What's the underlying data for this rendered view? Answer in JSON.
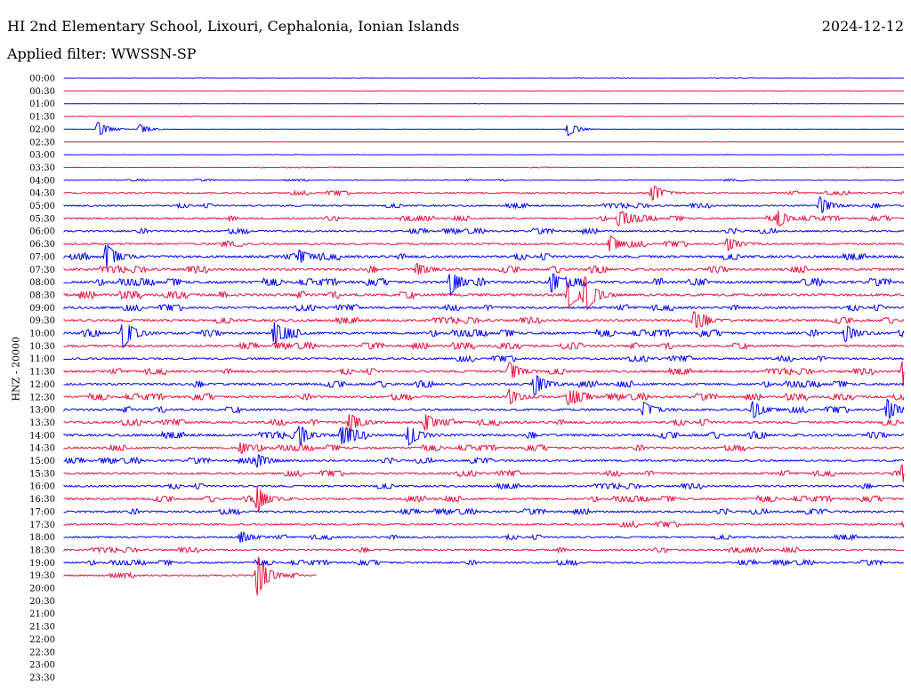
{
  "header": {
    "title": "HI 2nd Elementary School, Lixouri, Cephalonia, Ionian Islands",
    "date": "2024-12-12",
    "filter": "Applied filter: WWSSN-SP"
  },
  "chart_data": {
    "type": "line",
    "title": "HI 2nd Elementary School, Lixouri, Cephalonia, Ionian Islands",
    "ylabel": "HNZ - 20000",
    "xlabel": "",
    "row_labels": [
      "00:00",
      "00:30",
      "01:00",
      "01:30",
      "02:00",
      "02:30",
      "03:00",
      "03:30",
      "04:00",
      "04:30",
      "05:00",
      "05:30",
      "06:00",
      "06:30",
      "07:00",
      "07:30",
      "08:00",
      "08:30",
      "09:00",
      "09:30",
      "10:00",
      "10:30",
      "11:00",
      "11:30",
      "12:00",
      "12:30",
      "13:00",
      "13:30",
      "14:00",
      "14:30",
      "15:00",
      "15:30",
      "16:00",
      "16:30",
      "17:00",
      "17:30",
      "18:00",
      "18:30",
      "19:00",
      "19:30",
      "20:00",
      "20:30",
      "21:00",
      "21:30",
      "22:00",
      "22:30",
      "23:00",
      "23:30"
    ],
    "row_colors": [
      "#0000ff",
      "#e8103c"
    ],
    "recorded_rows": 40,
    "last_row_fraction": 0.3,
    "noise_level": [
      0.05,
      0.05,
      0.04,
      0.05,
      0.05,
      0.05,
      0.06,
      0.1,
      0.2,
      0.45,
      0.5,
      0.55,
      0.55,
      0.6,
      0.75,
      0.75,
      0.8,
      0.8,
      0.7,
      0.7,
      0.75,
      0.7,
      0.65,
      0.7,
      0.7,
      0.7,
      0.7,
      0.7,
      0.75,
      0.65,
      0.6,
      0.65,
      0.6,
      0.65,
      0.6,
      0.6,
      0.55,
      0.55,
      0.55,
      0.5
    ],
    "events": [
      {
        "row": 4,
        "x": 0.04,
        "amp": 8
      },
      {
        "row": 4,
        "x": 0.09,
        "amp": 5
      },
      {
        "row": 4,
        "x": 0.6,
        "amp": 7
      },
      {
        "row": 9,
        "x": 0.7,
        "amp": 8
      },
      {
        "row": 10,
        "x": 0.9,
        "amp": 9
      },
      {
        "row": 11,
        "x": 0.66,
        "amp": 8
      },
      {
        "row": 11,
        "x": 0.85,
        "amp": 7
      },
      {
        "row": 13,
        "x": 0.65,
        "amp": 9
      },
      {
        "row": 13,
        "x": 0.79,
        "amp": 7
      },
      {
        "row": 14,
        "x": 0.05,
        "amp": 14
      },
      {
        "row": 14,
        "x": 0.28,
        "amp": 7
      },
      {
        "row": 15,
        "x": 0.42,
        "amp": 6
      },
      {
        "row": 16,
        "x": 0.46,
        "amp": 13
      },
      {
        "row": 16,
        "x": 0.58,
        "amp": 11
      },
      {
        "row": 17,
        "x": 0.6,
        "amp": 14
      },
      {
        "row": 17,
        "x": 0.62,
        "amp": 18
      },
      {
        "row": 19,
        "x": 0.75,
        "amp": 9
      },
      {
        "row": 20,
        "x": 0.07,
        "amp": 16
      },
      {
        "row": 20,
        "x": 0.25,
        "amp": 12
      },
      {
        "row": 20,
        "x": 0.93,
        "amp": 9
      },
      {
        "row": 23,
        "x": 0.53,
        "amp": 10
      },
      {
        "row": 23,
        "x": 0.999,
        "amp": 16
      },
      {
        "row": 24,
        "x": 0.56,
        "amp": 12
      },
      {
        "row": 25,
        "x": 0.53,
        "amp": 8
      },
      {
        "row": 25,
        "x": 0.6,
        "amp": 8
      },
      {
        "row": 26,
        "x": 0.69,
        "amp": 8
      },
      {
        "row": 26,
        "x": 0.82,
        "amp": 9
      },
      {
        "row": 26,
        "x": 0.98,
        "amp": 11
      },
      {
        "row": 27,
        "x": 0.34,
        "amp": 10
      },
      {
        "row": 27,
        "x": 0.43,
        "amp": 9
      },
      {
        "row": 28,
        "x": 0.28,
        "amp": 9
      },
      {
        "row": 28,
        "x": 0.33,
        "amp": 10
      },
      {
        "row": 28,
        "x": 0.41,
        "amp": 11
      },
      {
        "row": 29,
        "x": 0.21,
        "amp": 6
      },
      {
        "row": 30,
        "x": 0.23,
        "amp": 7
      },
      {
        "row": 31,
        "x": 0.998,
        "amp": 10
      },
      {
        "row": 33,
        "x": 0.23,
        "amp": 12
      },
      {
        "row": 36,
        "x": 0.21,
        "amp": 6
      },
      {
        "row": 39,
        "x": 0.23,
        "amp": 22
      }
    ]
  }
}
